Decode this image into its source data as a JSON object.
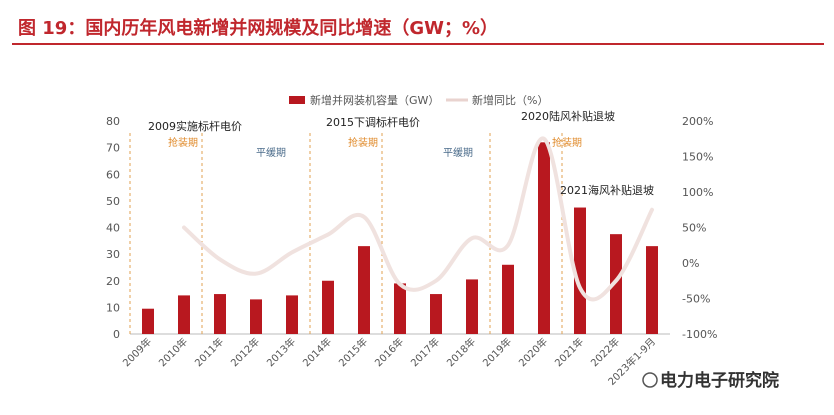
{
  "chart_data": {
    "type": "bar+line",
    "title": "图 19：国内历年风电新增并网规模及同比增速（GW；%）",
    "categories": [
      "2009年",
      "2010年",
      "2011年",
      "2012年",
      "2013年",
      "2014年",
      "2015年",
      "2016年",
      "2017年",
      "2018年",
      "2019年",
      "2020年",
      "2021年",
      "2022年",
      "2023年1-9月"
    ],
    "series": [
      {
        "name": "新增并网装机容量（GW）",
        "kind": "bar",
        "axis": "left",
        "values": [
          9.5,
          14.5,
          15,
          13,
          14.5,
          20,
          33,
          19,
          15,
          20.5,
          26,
          72,
          47.5,
          37.5,
          33
        ]
      },
      {
        "name": "新增同比（%）",
        "kind": "line",
        "axis": "right",
        "values": [
          null,
          50,
          5,
          -15,
          15,
          40,
          65,
          -30,
          -25,
          35,
          25,
          175,
          -35,
          -25,
          75
        ]
      }
    ],
    "yaxis_left": {
      "ticks": [
        "0",
        "10",
        "20",
        "30",
        "40",
        "50",
        "60",
        "70",
        "80"
      ],
      "ylim": [
        0,
        80
      ]
    },
    "yaxis_right": {
      "ticks": [
        "-100%",
        "-50%",
        "0%",
        "50%",
        "100%",
        "150%",
        "200%"
      ],
      "ylim": [
        -100,
        200
      ]
    },
    "legend_position": "top",
    "grid": false,
    "colors": {
      "bar": "#b8181f",
      "line": "#f0e2df",
      "title": "#c0272d",
      "dashed": "#e0a050"
    },
    "annotations": {
      "a2009": "2009实施标杆电价",
      "a2015": "2015下调标杆电价",
      "a2020": "2020陆风补贴退坡",
      "a2021": "2021海风补贴退坡",
      "rush1": "抢装期",
      "rush2": "抢装期",
      "rush3": "抢装期",
      "flat1": "平缓期",
      "flat2": "平缓期"
    }
  },
  "watermark": "电力电子研究院"
}
